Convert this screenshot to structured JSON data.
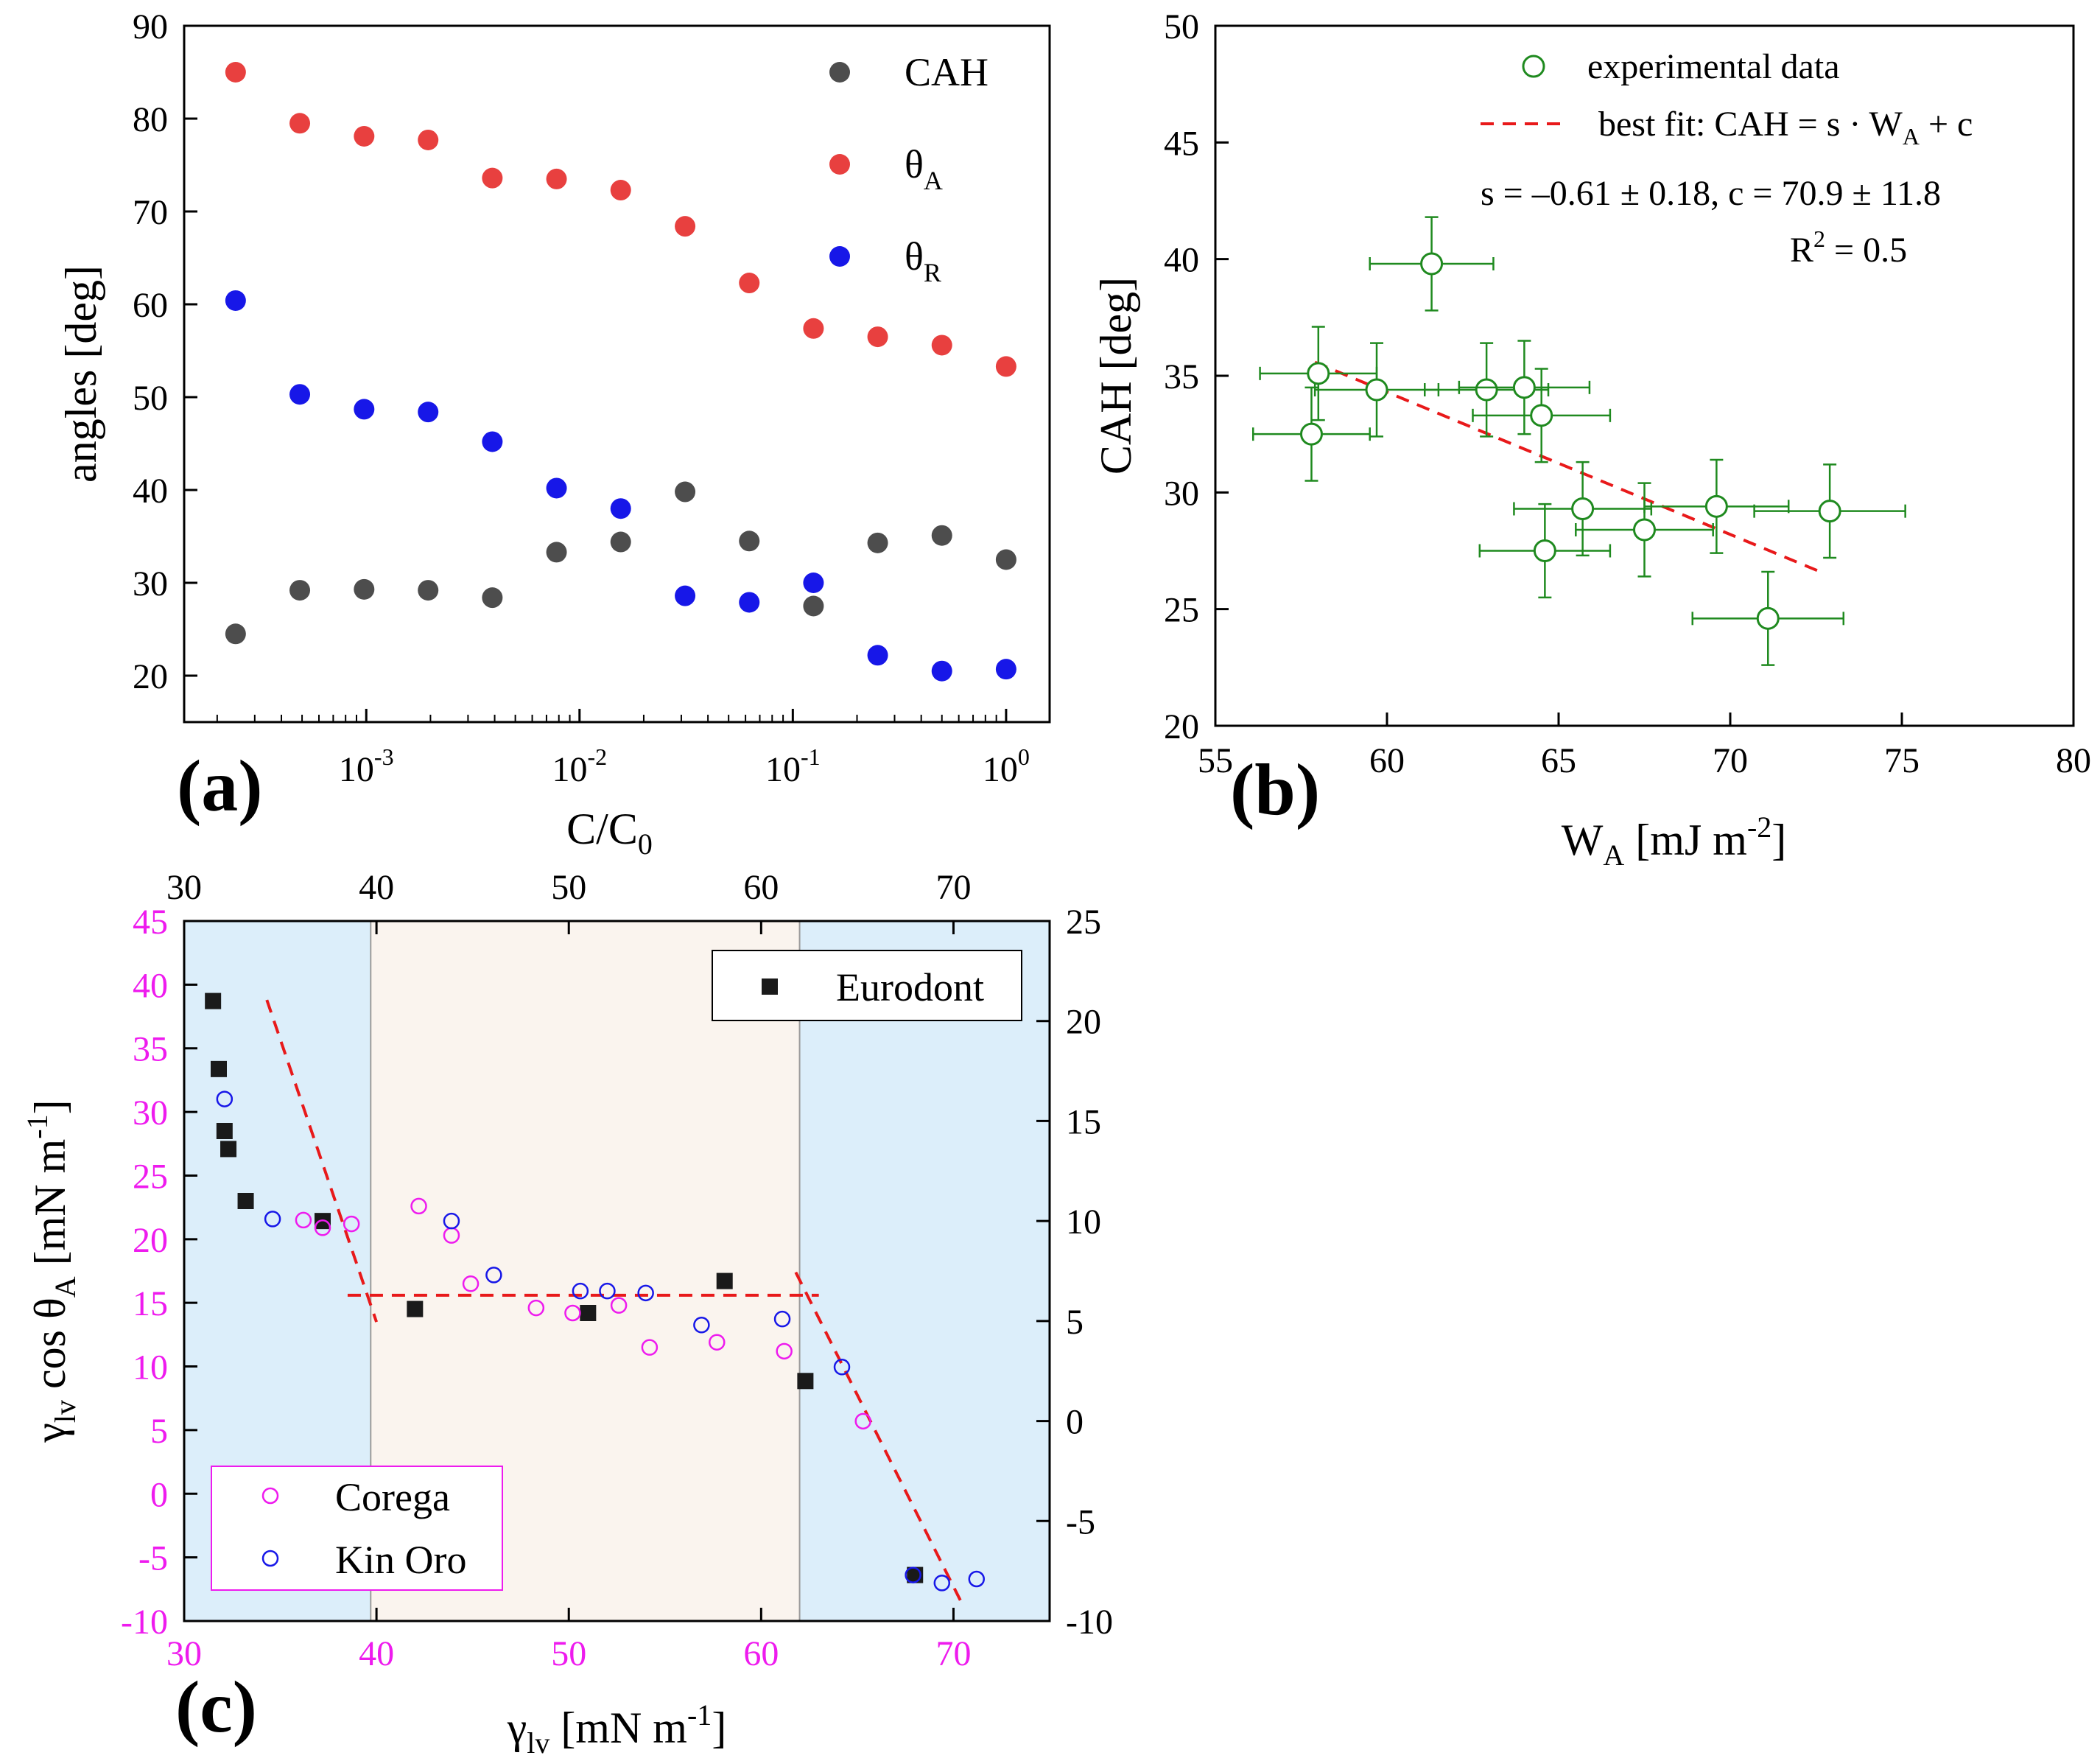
{
  "chart_data": [
    {
      "panel": "(a)",
      "type": "scatter",
      "x_scale": "log",
      "xlabel": "C/C",
      "xlabel_sub": "0",
      "ylabel": "angles [deg]",
      "xlim": [
        0.00014,
        1.6
      ],
      "ylim": [
        15,
        90
      ],
      "x_ticks": [
        {
          "value": 0.001,
          "base": "10",
          "exp": "-3"
        },
        {
          "value": 0.01,
          "base": "10",
          "exp": "-2"
        },
        {
          "value": 0.1,
          "base": "10",
          "exp": "-1"
        },
        {
          "value": 1,
          "base": "10",
          "exp": "0"
        }
      ],
      "y_ticks": [
        "20",
        "30",
        "40",
        "50",
        "60",
        "70",
        "80",
        "90"
      ],
      "legend_position": "top-right",
      "x": [
        0.000244,
        0.000488,
        0.000977,
        0.00195,
        0.0039,
        0.0078,
        0.0156,
        0.03125,
        0.0625,
        0.125,
        0.25,
        0.5,
        1.0
      ],
      "series": [
        {
          "name": "CAH",
          "name_sub": "",
          "color": "#4d4d4d",
          "values": [
            24.5,
            29.2,
            29.3,
            29.2,
            28.4,
            33.3,
            34.4,
            39.8,
            34.5,
            27.5,
            34.3,
            35.1,
            32.5
          ]
        },
        {
          "name": "θ",
          "name_sub": "A",
          "color": "#e8403f",
          "values": [
            85.0,
            79.5,
            78.1,
            77.7,
            73.6,
            73.5,
            72.3,
            68.4,
            62.3,
            57.4,
            56.5,
            55.6,
            53.3
          ]
        },
        {
          "name": "θ",
          "name_sub": "R",
          "color": "#1717e8",
          "values": [
            60.4,
            50.3,
            48.7,
            48.4,
            45.2,
            40.2,
            38.0,
            28.6,
            27.9,
            30.0,
            22.2,
            20.5,
            20.7
          ]
        }
      ]
    },
    {
      "panel": "(b)",
      "type": "scatter",
      "xlabel": "W",
      "xlabel_sub": "A",
      "xlabel_units": " [mJ m",
      "xlabel_sup": "-2",
      "xlabel_end": "]",
      "ylabel": "CAH [deg]",
      "xlim": [
        55,
        80
      ],
      "ylim": [
        20,
        50
      ],
      "x_ticks": [
        "55",
        "60",
        "65",
        "70",
        "75",
        "80"
      ],
      "y_ticks": [
        "20",
        "25",
        "30",
        "35",
        "40",
        "45",
        "50"
      ],
      "legend": {
        "data_label": "experimental data",
        "fit_label_pre": "best fit: CAH = s · W",
        "fit_label_sub": "A",
        "fit_label_post": " + c",
        "params": "s = –0.61 ± 0.18, c = 70.9 ± 11.8",
        "r2_pre": "R",
        "r2_sup": "2",
        "r2_post": " = 0.5"
      },
      "color": "#1f8a1f",
      "fit_color": "#e8191a",
      "fit": {
        "slope": -0.61,
        "intercept": 70.9,
        "x_range": [
          57.9,
          72.6
        ]
      },
      "points": [
        {
          "x": 58.0,
          "y": 35.1,
          "xerr": 1.7,
          "yerr": 2.0
        },
        {
          "x": 57.8,
          "y": 32.5,
          "xerr": 1.7,
          "yerr": 2.0
        },
        {
          "x": 59.7,
          "y": 34.4,
          "xerr": 1.8,
          "yerr": 2.0
        },
        {
          "x": 61.3,
          "y": 39.8,
          "xerr": 1.8,
          "yerr": 2.0
        },
        {
          "x": 62.9,
          "y": 34.4,
          "xerr": 1.8,
          "yerr": 2.0
        },
        {
          "x": 64.0,
          "y": 34.5,
          "xerr": 1.9,
          "yerr": 2.0
        },
        {
          "x": 64.5,
          "y": 33.3,
          "xerr": 2.0,
          "yerr": 2.0
        },
        {
          "x": 64.6,
          "y": 27.5,
          "xerr": 1.9,
          "yerr": 2.0
        },
        {
          "x": 65.7,
          "y": 29.3,
          "xerr": 2.0,
          "yerr": 2.0
        },
        {
          "x": 67.5,
          "y": 28.4,
          "xerr": 2.0,
          "yerr": 2.0
        },
        {
          "x": 69.6,
          "y": 29.4,
          "xerr": 2.1,
          "yerr": 2.0
        },
        {
          "x": 71.1,
          "y": 24.6,
          "xerr": 2.2,
          "yerr": 2.0
        },
        {
          "x": 72.9,
          "y": 29.2,
          "xerr": 2.2,
          "yerr": 2.0
        }
      ]
    },
    {
      "panel": "(c)",
      "type": "scatter",
      "xlabel_greek": "γ",
      "xlabel_sub": "lv",
      "xlabel_units": " [mN m",
      "xlabel_sup": "-1",
      "xlabel_end": "]",
      "ylabel_greek": "γ",
      "ylabel_sub": "lv",
      "ylabel_mid": " cos θ",
      "ylabel_sub2": "A",
      "ylabel_units": " [mN m",
      "ylabel_sup": "-1",
      "ylabel_end": "]",
      "xlim": [
        30,
        75
      ],
      "ylim": [
        -10,
        45
      ],
      "x_ticks": [
        "30",
        "40",
        "50",
        "60",
        "70"
      ],
      "y_ticks": [
        "-10",
        "-5",
        "0",
        "5",
        "10",
        "15",
        "20",
        "25",
        "30",
        "35",
        "40",
        "45"
      ],
      "top_xlim": [
        30,
        75
      ],
      "top_x_ticks": [
        "30",
        "40",
        "50",
        "60",
        "70"
      ],
      "right_ylim": [
        -10,
        25
      ],
      "right_y_ticks": [
        "-10",
        "-5",
        "0",
        "5",
        "10",
        "15",
        "20",
        "25"
      ],
      "left_axis_color": "#ee1bee",
      "regions": [
        {
          "from": 30,
          "to": 39.7,
          "color": "#dceefa"
        },
        {
          "from": 39.7,
          "to": 62.0,
          "color": "#faf4ee"
        },
        {
          "from": 62.0,
          "to": 75,
          "color": "#dceefa"
        }
      ],
      "fit_lines": [
        {
          "x1": 34.3,
          "y1": 38.8,
          "x2": 40.0,
          "y2": 13.5
        },
        {
          "x1": 38.5,
          "y1": 15.6,
          "x2": 63.0,
          "y2": 15.6
        },
        {
          "x1": 61.8,
          "y1": 17.4,
          "x2": 70.4,
          "y2": -8.5
        }
      ],
      "fit_color": "#e8191a",
      "series": [
        {
          "name": "Eurodont",
          "marker": "square",
          "color": "#1a1a1a",
          "axes": "top-right",
          "points": [
            [
              31.5,
              21.0
            ],
            [
              31.8,
              17.6
            ],
            [
              32.1,
              14.5
            ],
            [
              32.3,
              13.6
            ],
            [
              33.2,
              11.0
            ],
            [
              37.2,
              10.0
            ],
            [
              42.0,
              5.6
            ],
            [
              51.0,
              5.4
            ],
            [
              58.1,
              7.0
            ],
            [
              62.3,
              2.0
            ],
            [
              68.0,
              -7.7
            ]
          ]
        },
        {
          "name": "Corega",
          "marker": "circle-open",
          "color": "#ee1bee",
          "axes": "bottom-left",
          "points": [
            [
              36.2,
              21.5
            ],
            [
              37.2,
              20.9
            ],
            [
              38.7,
              21.2
            ],
            [
              42.2,
              22.6
            ],
            [
              43.9,
              20.3
            ],
            [
              44.9,
              16.5
            ],
            [
              48.3,
              14.6
            ],
            [
              50.2,
              14.2
            ],
            [
              52.6,
              14.8
            ],
            [
              54.2,
              11.5
            ],
            [
              57.7,
              11.9
            ],
            [
              61.2,
              11.2
            ],
            [
              65.3,
              5.7
            ]
          ]
        },
        {
          "name": "Kin Oro",
          "marker": "circle-open",
          "color": "#1717e8",
          "axes": "top-right",
          "points": [
            [
              32.1,
              16.1
            ],
            [
              34.6,
              10.1
            ],
            [
              43.9,
              10.0
            ],
            [
              46.1,
              7.3
            ],
            [
              50.6,
              6.5
            ],
            [
              52.0,
              6.5
            ],
            [
              54.0,
              6.4
            ],
            [
              56.9,
              4.8
            ],
            [
              61.1,
              5.1
            ],
            [
              64.2,
              2.7
            ],
            [
              67.9,
              -7.7
            ],
            [
              69.4,
              -8.1
            ],
            [
              71.2,
              -7.9
            ]
          ]
        }
      ],
      "legend_top_right": [
        "Eurodont"
      ],
      "legend_bottom_left": [
        "Corega",
        "Kin Oro"
      ]
    }
  ],
  "panel_labels": [
    "(a)",
    "(b)",
    "(c)"
  ]
}
